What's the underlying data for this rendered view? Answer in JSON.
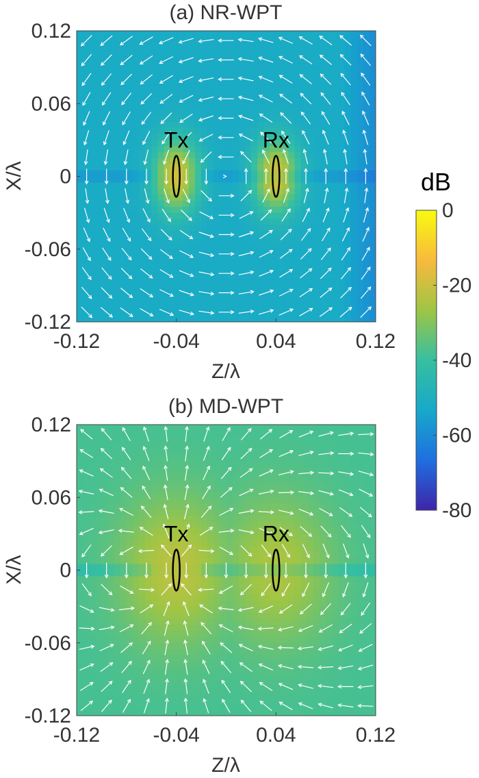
{
  "chart_data": [
    {
      "type": "heatmap",
      "title": "(a) NR-WPT",
      "xlabel": "Z/λ",
      "ylabel": "X/λ",
      "xlim": [
        -0.12,
        0.12
      ],
      "ylim": [
        -0.12,
        0.12
      ],
      "xticks": [
        "-0.12",
        "-0.04",
        "0.04",
        "0.12"
      ],
      "xtick_values": [
        -0.12,
        -0.04,
        0.04,
        0.12
      ],
      "yticks": [
        "0.12",
        "0.06",
        "0",
        "-0.06",
        "-0.12"
      ],
      "ytick_values": [
        0.12,
        0.06,
        0,
        -0.06,
        -0.12
      ],
      "antennas": [
        {
          "label": "Tx",
          "z": -0.04,
          "x": 0
        },
        {
          "label": "Rx",
          "z": 0.04,
          "x": 0
        }
      ],
      "field_pattern": "loop",
      "background_level_db": -52,
      "hotspot_level_db": -18,
      "hotspot_centers_z": [
        -0.04,
        0.04
      ]
    },
    {
      "type": "heatmap",
      "title": "(b) MD-WPT",
      "xlabel": "Z/λ",
      "ylabel": "X/λ",
      "xlim": [
        -0.12,
        0.12
      ],
      "ylim": [
        -0.12,
        0.12
      ],
      "xticks": [
        "-0.12",
        "-0.04",
        "0.04",
        "0.12"
      ],
      "xtick_values": [
        -0.12,
        -0.04,
        0.04,
        0.12
      ],
      "yticks": [
        "0.12",
        "0.06",
        "0",
        "-0.06",
        "-0.12"
      ],
      "ytick_values": [
        0.12,
        0.06,
        0,
        -0.06,
        -0.12
      ],
      "antennas": [
        {
          "label": "Tx",
          "z": -0.04,
          "x": 0
        },
        {
          "label": "Rx",
          "z": 0.04,
          "x": 0
        }
      ],
      "field_pattern": "dipole",
      "background_level_db": -38,
      "hotspot_level_db": -22,
      "hotspot_centers_z": [
        -0.04,
        0.04
      ]
    }
  ],
  "colorbar": {
    "title": "dB",
    "min": -80,
    "max": 0,
    "ticks": [
      "0",
      "-20",
      "-40",
      "-60",
      "-80"
    ],
    "tick_values": [
      0,
      -20,
      -40,
      -60,
      -80
    ],
    "colormap": [
      "#3e26a8",
      "#1f6fe0",
      "#17a9c9",
      "#36bfa0",
      "#9ec545",
      "#f8ba3d",
      "#f9fb0e"
    ]
  }
}
